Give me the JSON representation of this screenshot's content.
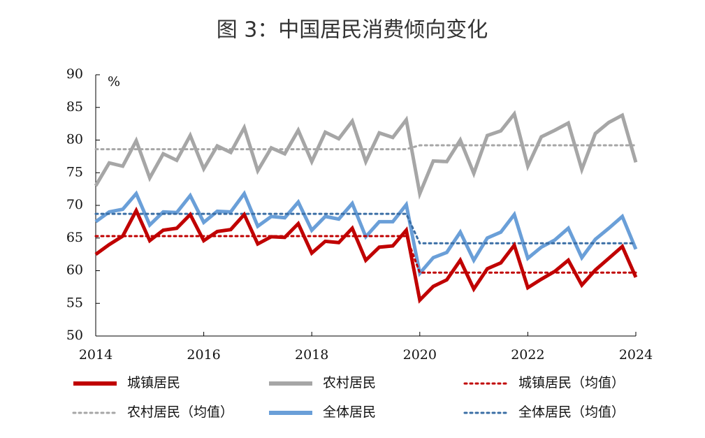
{
  "chart_data": {
    "type": "line",
    "title": "图 3：中国居民消费倾向变化",
    "y_label": "%",
    "x": [
      2014,
      2014.25,
      2014.5,
      2014.75,
      2015,
      2015.25,
      2015.5,
      2015.75,
      2016,
      2016.25,
      2016.5,
      2016.75,
      2017,
      2017.25,
      2017.5,
      2017.75,
      2018,
      2018.25,
      2018.5,
      2018.75,
      2019,
      2019.25,
      2019.5,
      2019.75,
      2020,
      2020.25,
      2020.5,
      2020.75,
      2021,
      2021.25,
      2021.5,
      2021.75,
      2022,
      2022.25,
      2022.5,
      2022.75,
      2023,
      2023.25,
      2023.5,
      2023.75,
      2024
    ],
    "xlim": [
      2014,
      2024
    ],
    "xticks": [
      2014,
      2016,
      2018,
      2020,
      2022,
      2024
    ],
    "ylim": [
      50,
      90
    ],
    "yticks": [
      50,
      55,
      60,
      65,
      70,
      75,
      80,
      85,
      90
    ],
    "grid": false,
    "series": [
      {
        "name": "城镇居民",
        "color": "#c00000",
        "style": "solid",
        "values": [
          62.5,
          64,
          65.3,
          69.2,
          64.6,
          66.2,
          66.5,
          68.6,
          64.6,
          66,
          66.3,
          68.6,
          64.1,
          65.2,
          65.1,
          67.2,
          62.7,
          64.5,
          64.3,
          66.5,
          61.6,
          63.6,
          63.8,
          66.2,
          55.5,
          57.6,
          58.6,
          61.6,
          57.2,
          60.3,
          61.2,
          63.9,
          57.4,
          58.7,
          59.9,
          61.6,
          57.8,
          60.1,
          61.9,
          63.7,
          59
        ]
      },
      {
        "name": "农村居民",
        "color": "#a6a6a6",
        "style": "solid",
        "values": [
          73,
          76.5,
          76,
          79.9,
          74.2,
          77.9,
          76.9,
          80.7,
          75.6,
          79.1,
          78.1,
          81.9,
          75.3,
          78.8,
          77.9,
          81.5,
          76.7,
          81.2,
          80.2,
          82.9,
          76.7,
          81.1,
          80.4,
          83.1,
          71.8,
          76.8,
          76.7,
          80,
          74.9,
          80.7,
          81.4,
          84,
          76,
          80.5,
          81.5,
          82.6,
          75.5,
          81,
          82.7,
          83.8,
          76.6
        ]
      },
      {
        "name": "城镇居民（均值）",
        "color": "#c00000",
        "style": "dotted",
        "values": [
          65.3,
          65.3,
          65.3,
          65.3,
          65.3,
          65.3,
          65.3,
          65.3,
          65.3,
          65.3,
          65.3,
          65.3,
          65.3,
          65.3,
          65.3,
          65.3,
          65.3,
          65.3,
          65.3,
          65.3,
          65.3,
          65.3,
          65.3,
          65.3,
          59.7,
          59.7,
          59.7,
          59.7,
          59.7,
          59.7,
          59.7,
          59.7,
          59.7,
          59.7,
          59.7,
          59.7,
          59.7,
          59.7,
          59.7,
          59.7,
          59.7
        ]
      },
      {
        "name": "农村居民（均值）",
        "color": "#a6a6a6",
        "style": "dotted",
        "values": [
          78.6,
          78.6,
          78.6,
          78.6,
          78.6,
          78.6,
          78.6,
          78.6,
          78.6,
          78.6,
          78.6,
          78.6,
          78.6,
          78.6,
          78.6,
          78.6,
          78.6,
          78.6,
          78.6,
          78.6,
          78.6,
          78.6,
          78.6,
          78.6,
          79.2,
          79.2,
          79.2,
          79.2,
          79.2,
          79.2,
          79.2,
          79.2,
          79.2,
          79.2,
          79.2,
          79.2,
          79.2,
          79.2,
          79.2,
          79.2,
          79.2
        ]
      },
      {
        "name": "全体居民",
        "color": "#6a9fd8",
        "style": "solid",
        "values": [
          67.5,
          69,
          69.4,
          71.8,
          67,
          69,
          68.9,
          71.5,
          67.4,
          69.1,
          69,
          71.8,
          66.8,
          68.3,
          68.1,
          70.5,
          66.2,
          68.3,
          67.9,
          70.3,
          65.2,
          67.5,
          67.5,
          70.1,
          59.6,
          62,
          62.8,
          65.9,
          61.6,
          65,
          65.9,
          68.6,
          61.9,
          63.6,
          64.7,
          66.5,
          62,
          64.8,
          66.5,
          68.3,
          63.3
        ]
      },
      {
        "name": "全体居民（均值）",
        "color": "#3a6ea5",
        "style": "dotted",
        "values": [
          68.7,
          68.7,
          68.7,
          68.7,
          68.7,
          68.7,
          68.7,
          68.7,
          68.7,
          68.7,
          68.7,
          68.7,
          68.7,
          68.7,
          68.7,
          68.7,
          68.7,
          68.7,
          68.7,
          68.7,
          68.7,
          68.7,
          68.7,
          68.7,
          64.2,
          64.2,
          64.2,
          64.2,
          64.2,
          64.2,
          64.2,
          64.2,
          64.2,
          64.2,
          64.2,
          64.2,
          64.2,
          64.2,
          64.2,
          64.2,
          64.2
        ]
      }
    ]
  }
}
